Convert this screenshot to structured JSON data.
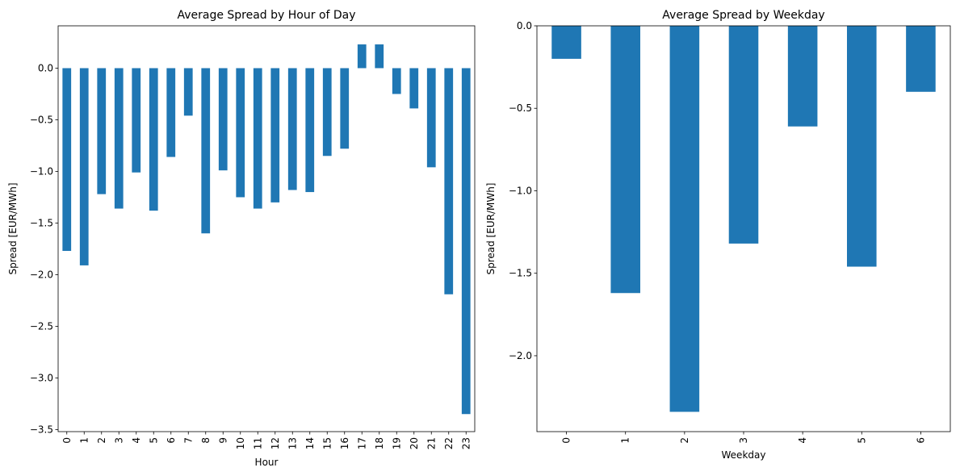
{
  "chart_data": [
    {
      "type": "bar",
      "title": "Average Spread by Hour of Day",
      "xlabel": "Hour",
      "ylabel": "Spread [EUR/MWh]",
      "categories": [
        "0",
        "1",
        "2",
        "3",
        "4",
        "5",
        "6",
        "7",
        "8",
        "9",
        "10",
        "11",
        "12",
        "13",
        "14",
        "15",
        "16",
        "17",
        "18",
        "19",
        "20",
        "21",
        "22",
        "23"
      ],
      "values": [
        -1.77,
        -1.91,
        -1.22,
        -1.36,
        -1.01,
        -1.38,
        -0.86,
        -0.46,
        -1.6,
        -0.99,
        -1.25,
        -1.36,
        -1.3,
        -1.18,
        -1.2,
        -0.85,
        -0.78,
        0.23,
        0.23,
        -0.25,
        -0.39,
        -0.96,
        -2.19,
        -3.35
      ],
      "ylim": [
        -3.52,
        0.41
      ],
      "yticks": [
        -3.5,
        -3.0,
        -2.5,
        -2.0,
        -1.5,
        -1.0,
        -0.5,
        0.0
      ],
      "ytick_labels": [
        "−3.5",
        "−3.0",
        "−2.5",
        "−2.0",
        "−1.5",
        "−1.0",
        "−0.5",
        "0.0"
      ],
      "color": "#1f77b4",
      "grid": false,
      "legend": "none"
    },
    {
      "type": "bar",
      "title": "Average Spread by Weekday",
      "xlabel": "Weekday",
      "ylabel": "Spread [EUR/MWh]",
      "categories": [
        "0",
        "1",
        "2",
        "3",
        "4",
        "5",
        "6"
      ],
      "values": [
        -0.2,
        -1.62,
        -2.34,
        -1.32,
        -0.61,
        -1.46,
        -0.4
      ],
      "ylim": [
        -2.46,
        0.0
      ],
      "yticks": [
        -2.0,
        -1.5,
        -1.0,
        -0.5,
        0.0
      ],
      "ytick_labels": [
        "−2.0",
        "−1.5",
        "−1.0",
        "−0.5",
        "0.0"
      ],
      "color": "#1f77b4",
      "grid": false,
      "legend": "none"
    }
  ]
}
